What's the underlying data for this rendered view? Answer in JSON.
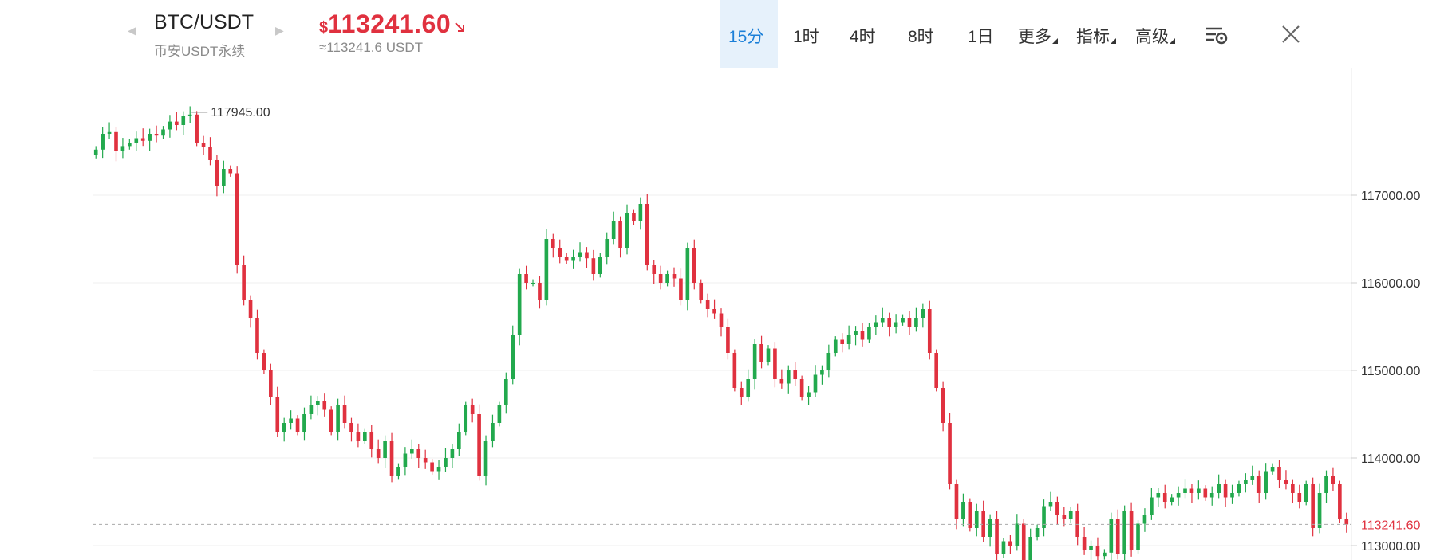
{
  "header": {
    "pair": "BTC/USDT",
    "subtitle": "币安USDT永续",
    "price_currency": "$",
    "price": "113241.60",
    "price_approx": "≈113241.6 USDT",
    "price_color": "#e0313f"
  },
  "timeframes": [
    {
      "label": "15分",
      "active": true
    },
    {
      "label": "1时"
    },
    {
      "label": "4时"
    },
    {
      "label": "8时"
    },
    {
      "label": "1日"
    },
    {
      "label": "更多",
      "dropdown": true
    },
    {
      "label": "指标",
      "dropdown": true
    },
    {
      "label": "高级",
      "dropdown": true
    }
  ],
  "icons": {
    "prev": "chevron-left-icon",
    "next": "chevron-right-icon",
    "settings": "chart-settings-icon",
    "close": "close-icon",
    "trend": "arrow-down-right-icon"
  },
  "colors": {
    "up": "#22a94d",
    "down": "#e0313f",
    "active_tab": "#1a7fd8",
    "active_tab_bg": "#e6f1fb"
  },
  "chart_data": {
    "type": "candlestick",
    "interval": "15分",
    "y_ticks": [
      117000.0,
      116000.0,
      115000.0,
      114000.0,
      113000.0
    ],
    "y_tick_labels": [
      "117000.00",
      "116000.00",
      "115000.00",
      "114000.00",
      "113000.00"
    ],
    "ylim": [
      112850,
      118900
    ],
    "max_annotation": {
      "label": "117945.00",
      "value": 117945.0
    },
    "last_price_line": {
      "label": "113241.60",
      "value": 113241.6
    },
    "grid": true,
    "closes": [
      117520,
      117700,
      117720,
      117500,
      117560,
      117600,
      117650,
      117620,
      117700,
      117680,
      117750,
      117840,
      117800,
      117900,
      117920,
      117600,
      117550,
      117400,
      117100,
      117300,
      117250,
      116200,
      115800,
      115600,
      115200,
      115000,
      114700,
      114300,
      114400,
      114450,
      114300,
      114500,
      114600,
      114650,
      114550,
      114300,
      114600,
      114400,
      114300,
      114200,
      114300,
      114100,
      114000,
      114200,
      113800,
      113900,
      114050,
      114100,
      114000,
      113950,
      113850,
      113900,
      114000,
      114100,
      114300,
      114600,
      114500,
      113800,
      114200,
      114400,
      114600,
      114900,
      115400,
      116100,
      116000,
      116000,
      115800,
      116500,
      116400,
      116300,
      116250,
      116300,
      116350,
      116280,
      116100,
      116300,
      116500,
      116700,
      116400,
      116800,
      116700,
      116900,
      116200,
      116100,
      116000,
      116100,
      116050,
      115800,
      116400,
      116000,
      115800,
      115700,
      115650,
      115500,
      115200,
      114800,
      114700,
      114900,
      115300,
      115100,
      115250,
      114900,
      114850,
      115000,
      114900,
      114700,
      114750,
      114950,
      115000,
      115200,
      115350,
      115300,
      115400,
      115450,
      115350,
      115500,
      115550,
      115600,
      115500,
      115550,
      115600,
      115500,
      115600,
      115700,
      115200,
      114800,
      114400,
      113700,
      113300,
      113500,
      113200,
      113400,
      113100,
      113300,
      112900,
      113050,
      113000,
      113250,
      112800,
      113100,
      113200,
      113450,
      113500,
      113350,
      113300,
      113400,
      113100,
      112950,
      113000,
      112880,
      112920,
      113300,
      112900,
      113400,
      112950,
      113250,
      113350,
      113550,
      113600,
      113500,
      113550,
      113600,
      113650,
      113600,
      113650,
      113550,
      113600,
      113700,
      113550,
      113600,
      113700,
      113750,
      113800,
      113600,
      113850,
      113900,
      113750,
      113700,
      113600,
      113500,
      113700,
      113200,
      113600,
      113800,
      113700,
      113300,
      113241.6
    ],
    "x_range": "last 187 candles (15-minute interval)"
  }
}
